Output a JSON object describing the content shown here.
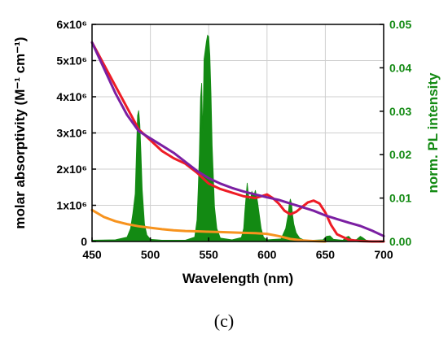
{
  "chart_data": {
    "type": "line",
    "xlabel": "Wavelength (nm)",
    "ylabel_left": "molar absorptivity (M⁻¹ cm⁻¹)",
    "ylabel_right": "norm. PL intensity",
    "xlim": [
      450,
      700
    ],
    "ylim_left": [
      0,
      6000000
    ],
    "ylim_right": [
      0,
      0.05
    ],
    "x_ticks": [
      450,
      500,
      550,
      600,
      650,
      700
    ],
    "y_left_ticks": [
      {
        "value": 0,
        "label": "0"
      },
      {
        "value": 1000000,
        "label": "1x10⁶"
      },
      {
        "value": 2000000,
        "label": "2x10⁶"
      },
      {
        "value": 3000000,
        "label": "3x10⁶"
      },
      {
        "value": 4000000,
        "label": "4x10⁶"
      },
      {
        "value": 5000000,
        "label": "5x10⁶"
      },
      {
        "value": 6000000,
        "label": "6x10⁶"
      }
    ],
    "y_right_ticks": [
      {
        "value": 0,
        "label": "0.00"
      },
      {
        "value": 0.01,
        "label": "0.01"
      },
      {
        "value": 0.02,
        "label": "0.02"
      },
      {
        "value": 0.03,
        "label": "0.03"
      },
      {
        "value": 0.04,
        "label": "0.04"
      },
      {
        "value": 0.05,
        "label": "0.05"
      }
    ],
    "grid": true,
    "series": [
      {
        "color": "#f7931e",
        "axis": "left",
        "x": [
          450,
          460,
          470,
          480,
          490,
          500,
          510,
          520,
          530,
          540,
          550,
          560,
          570,
          580,
          590,
          600,
          610,
          620,
          630,
          640,
          650
        ],
        "y": [
          870000,
          680000,
          560000,
          480000,
          420000,
          380000,
          340000,
          310000,
          290000,
          280000,
          270000,
          260000,
          250000,
          240000,
          230000,
          210000,
          150000,
          70000,
          30000,
          10000,
          0
        ]
      },
      {
        "color": "#ee1c25",
        "axis": "left",
        "x": [
          450,
          460,
          470,
          480,
          490,
          500,
          510,
          520,
          530,
          540,
          550,
          560,
          570,
          580,
          590,
          595,
          600,
          605,
          610,
          615,
          620,
          625,
          630,
          635,
          640,
          645,
          650,
          655,
          660,
          670,
          680,
          690,
          700
        ],
        "y": [
          5500000,
          4900000,
          4300000,
          3700000,
          3100000,
          2800000,
          2500000,
          2300000,
          2150000,
          1900000,
          1600000,
          1450000,
          1350000,
          1250000,
          1200000,
          1250000,
          1300000,
          1200000,
          1050000,
          850000,
          750000,
          820000,
          950000,
          1080000,
          1130000,
          1050000,
          800000,
          450000,
          200000,
          50000,
          10000,
          0,
          0
        ]
      },
      {
        "color": "#7b1fa2",
        "axis": "left",
        "x": [
          450,
          460,
          470,
          480,
          490,
          500,
          510,
          520,
          530,
          540,
          550,
          560,
          570,
          580,
          590,
          600,
          610,
          620,
          630,
          640,
          650,
          660,
          670,
          680,
          690,
          700
        ],
        "y": [
          5500000,
          4800000,
          4100000,
          3500000,
          3050000,
          2850000,
          2650000,
          2450000,
          2200000,
          1950000,
          1750000,
          1600000,
          1480000,
          1380000,
          1300000,
          1220000,
          1150000,
          1050000,
          950000,
          850000,
          720000,
          620000,
          520000,
          430000,
          300000,
          150000
        ]
      },
      {
        "color": "#138a13",
        "axis": "right",
        "fill": true,
        "x": [
          450,
          470,
          480,
          483,
          485,
          487,
          488,
          489,
          490,
          491,
          492,
          493,
          495,
          497,
          500,
          510,
          530,
          538,
          540,
          541,
          542,
          543,
          544,
          545,
          546,
          547,
          548,
          549,
          550,
          551,
          552,
          553,
          555,
          557,
          560,
          570,
          578,
          580,
          581,
          582,
          583,
          584,
          585,
          586,
          587,
          588,
          589,
          590,
          591,
          592,
          593,
          595,
          597,
          600,
          612,
          616,
          618,
          619,
          620,
          621,
          622,
          623,
          625,
          628,
          632,
          640,
          648,
          651,
          654,
          657,
          665,
          668,
          670,
          672,
          674,
          677,
          680,
          682,
          685,
          690,
          700
        ],
        "y": [
          0.0003,
          0.0004,
          0.001,
          0.003,
          0.0065,
          0.011,
          0.02,
          0.029,
          0.0302,
          0.027,
          0.02,
          0.012,
          0.004,
          0.0015,
          0.0005,
          0.0003,
          0.0003,
          0.001,
          0.005,
          0.012,
          0.02,
          0.033,
          0.0365,
          0.025,
          0.042,
          0.044,
          0.046,
          0.0475,
          0.0472,
          0.043,
          0.034,
          0.022,
          0.008,
          0.003,
          0.0008,
          0.0004,
          0.0009,
          0.003,
          0.007,
          0.0102,
          0.0135,
          0.011,
          0.0095,
          0.01,
          0.0115,
          0.011,
          0.0108,
          0.0118,
          0.0105,
          0.009,
          0.007,
          0.003,
          0.001,
          0.0004,
          0.0006,
          0.003,
          0.006,
          0.0085,
          0.0098,
          0.0088,
          0.006,
          0.004,
          0.002,
          0.0008,
          0.0003,
          0.0003,
          0.0004,
          0.0012,
          0.0013,
          0.0005,
          0.0003,
          0.001,
          0.0012,
          0.0006,
          0.0003,
          0.0005,
          0.0012,
          0.0009,
          0.0003,
          0.0001,
          0.0001
        ]
      }
    ]
  },
  "caption": "(c)"
}
